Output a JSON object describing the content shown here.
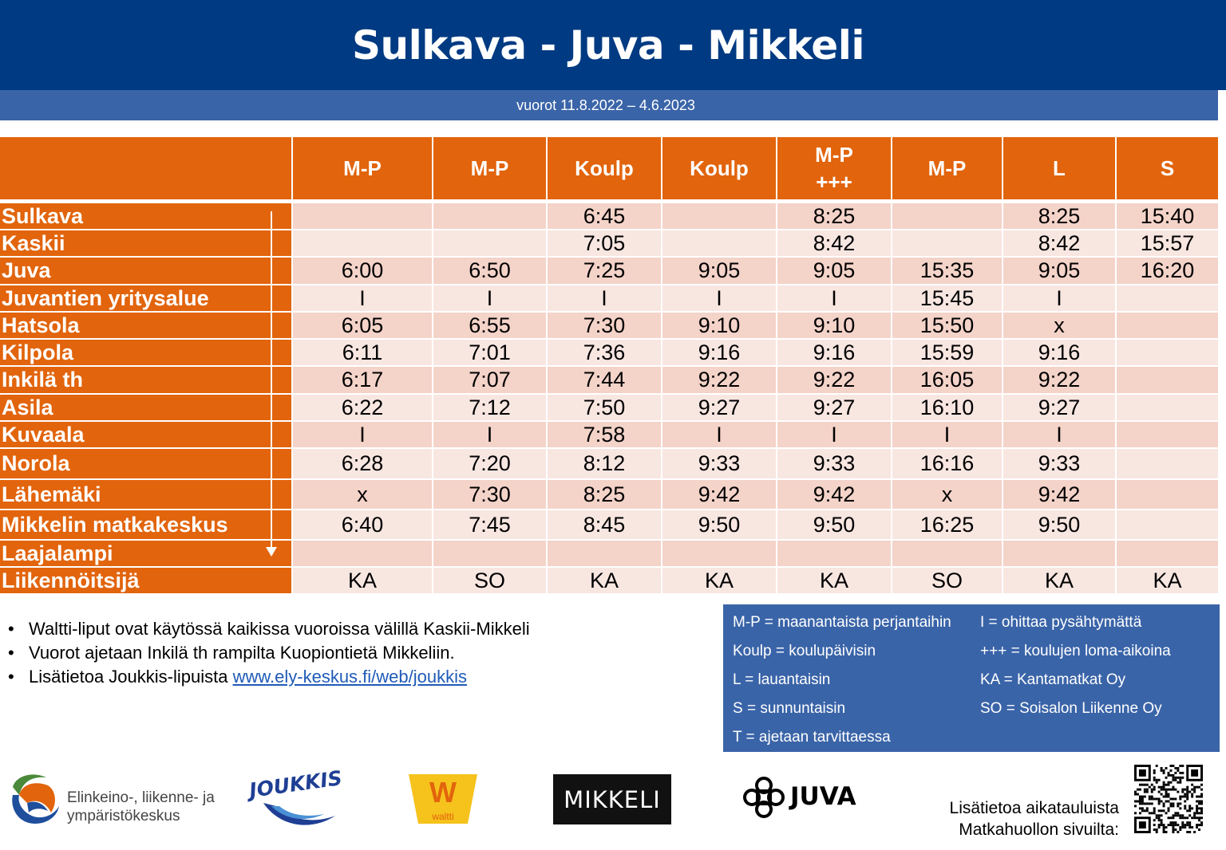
{
  "header": {
    "title": "Sulkava - Juva - Mikkeli",
    "subtitle": "vuorot 11.8.2022 – 4.6.2023"
  },
  "timetable": {
    "columns": [
      {
        "line1": "M-P",
        "line2": ""
      },
      {
        "line1": "M-P",
        "line2": ""
      },
      {
        "line1": "Koulp",
        "line2": ""
      },
      {
        "line1": "Koulp",
        "line2": ""
      },
      {
        "line1": "M-P",
        "line2": "+++"
      },
      {
        "line1": "M-P",
        "line2": ""
      },
      {
        "line1": "L",
        "line2": ""
      },
      {
        "line1": "S",
        "line2": ""
      }
    ],
    "rows": [
      {
        "stop": "Sulkava",
        "times": [
          "",
          "",
          "6:45",
          "",
          "8:25",
          "",
          "8:25",
          "15:40"
        ]
      },
      {
        "stop": "Kaskii",
        "times": [
          "",
          "",
          "7:05",
          "",
          "8:42",
          "",
          "8:42",
          "15:57"
        ]
      },
      {
        "stop": "Juva",
        "times": [
          "6:00",
          "6:50",
          "7:25",
          "9:05",
          "9:05",
          "15:35",
          "9:05",
          "16:20"
        ]
      },
      {
        "stop": "Juvantien yritysalue",
        "times": [
          "I",
          "I",
          "I",
          "I",
          "I",
          "15:45",
          "I",
          ""
        ]
      },
      {
        "stop": "Hatsola",
        "times": [
          "6:05",
          "6:55",
          "7:30",
          "9:10",
          "9:10",
          "15:50",
          "x",
          ""
        ]
      },
      {
        "stop": "Kilpola",
        "times": [
          "6:11",
          "7:01",
          "7:36",
          "9:16",
          "9:16",
          "15:59",
          "9:16",
          ""
        ]
      },
      {
        "stop": "Inkilä th",
        "times": [
          "6:17",
          "7:07",
          "7:44",
          "9:22",
          "9:22",
          "16:05",
          "9:22",
          ""
        ]
      },
      {
        "stop": "Asila",
        "times": [
          "6:22",
          "7:12",
          "7:50",
          "9:27",
          "9:27",
          "16:10",
          "9:27",
          ""
        ]
      },
      {
        "stop": "Kuvaala",
        "times": [
          "I",
          "I",
          "7:58",
          "I",
          "I",
          "I",
          "I",
          ""
        ]
      },
      {
        "stop": "Norola",
        "times": [
          "6:28",
          "7:20",
          "8:12",
          "9:33",
          "9:33",
          "16:16",
          "9:33",
          ""
        ]
      },
      {
        "stop": "Lähemäki",
        "times": [
          "x",
          "7:30",
          "8:25",
          "9:42",
          "9:42",
          "x",
          "9:42",
          ""
        ]
      },
      {
        "stop": "Mikkelin matkakeskus",
        "times": [
          "6:40",
          "7:45",
          "8:45",
          "9:50",
          "9:50",
          "16:25",
          "9:50",
          ""
        ]
      },
      {
        "stop": "Laajalampi",
        "times": [
          "",
          "",
          "",
          "",
          "",
          "",
          "",
          ""
        ]
      },
      {
        "stop": "Liikennöitsijä",
        "times": [
          "KA",
          "SO",
          "KA",
          "KA",
          "KA",
          "SO",
          "KA",
          "KA"
        ]
      }
    ]
  },
  "notes": {
    "items": [
      "Waltti-liput ovat käytössä kaikissa vuoroissa välillä Kaskii-Mikkeli",
      "Vuorot ajetaan Inkilä th rampilta Kuopiontietä Mikkeliin."
    ],
    "info_prefix": "Lisätietoa Joukkis-lipuista ",
    "info_link": "www.ely-keskus.fi/web/joukkis"
  },
  "legend": {
    "left": [
      "M-P = maanantaista perjantaihin",
      "Koulp = koulupäivisin",
      "L = lauantaisin",
      "S = sunnuntaisin",
      "T = ajetaan tarvittaessa"
    ],
    "right": [
      "I = ohittaa pysähtymättä",
      "+++ = koulujen loma-aikoina",
      "KA = Kantamatkat Oy",
      "SO = Soisalon Liikenne Oy"
    ]
  },
  "logos": {
    "ely_line1": "Elinkeino-, liikenne- ja",
    "ely_line2": "ympäristökeskus",
    "joukkis": "JOUKKIS",
    "waltti": "waltti",
    "waltti_letter": "W",
    "mikkeli": "MIKKELI",
    "juva": "JUVA"
  },
  "qr_note": {
    "line1": "Lisätietoa aikatauluista",
    "line2": "Matkahuollon sivuilta:"
  },
  "colors": {
    "header_blue": "#003a82",
    "sub_blue": "#3a64a8",
    "orange": "#e2640c",
    "row_dark": "#f4d3c9",
    "row_light": "#f8e6e1"
  }
}
